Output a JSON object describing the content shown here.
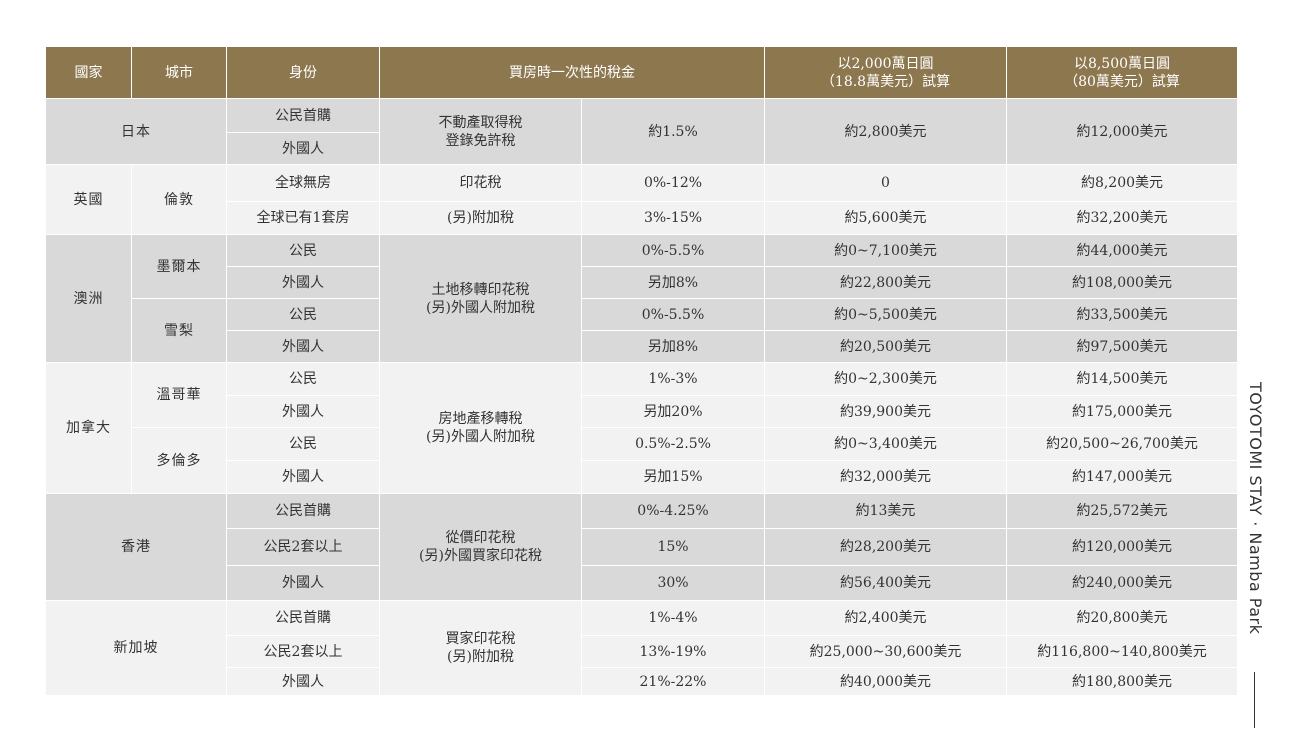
{
  "header": {
    "country": "國家",
    "city": "城市",
    "identity": "身份",
    "tax": "買房時一次性的稅金",
    "calc1_line1": "以2,000萬日圓",
    "calc1_line2": "（18.8萬美元）試算",
    "calc2_line1": "以8,500萬日圓",
    "calc2_line2": "（80萬美元）試算"
  },
  "japan": {
    "name": "日本",
    "id1": "公民首購",
    "id2": "外國人",
    "tax_line1": "不動產取得稅",
    "tax_line2": "登錄免許稅",
    "rate": "約1.5%",
    "c1": "約2,800美元",
    "c2": "約12,000美元"
  },
  "uk": {
    "name": "英國",
    "city": "倫敦",
    "rows": [
      {
        "id": "全球無房",
        "tax": "印花稅",
        "rate": "0%-12%",
        "c1": "0",
        "c2": "約8,200美元"
      },
      {
        "id": "全球已有1套房",
        "tax": "(另)附加稅",
        "rate": "3%-15%",
        "c1": "約5,600美元",
        "c2": "約32,200美元"
      }
    ]
  },
  "australia": {
    "name": "澳洲",
    "city1": "墨爾本",
    "city2": "雪梨",
    "tax_line1": "土地移轉印花稅",
    "tax_line2": "(另)外國人附加稅",
    "rows": [
      {
        "id": "公民",
        "rate": "0%-5.5%",
        "c1": "約0~7,100美元",
        "c2": "約44,000美元"
      },
      {
        "id": "外國人",
        "rate": "另加8%",
        "c1": "約22,800美元",
        "c2": "約108,000美元"
      },
      {
        "id": "公民",
        "rate": "0%-5.5%",
        "c1": "約0~5,500美元",
        "c2": "約33,500美元"
      },
      {
        "id": "外國人",
        "rate": "另加8%",
        "c1": "約20,500美元",
        "c2": "約97,500美元"
      }
    ]
  },
  "canada": {
    "name": "加拿大",
    "city1": "溫哥華",
    "city2": "多倫多",
    "tax_line1": "房地產移轉稅",
    "tax_line2": "(另)外國人附加稅",
    "rows": [
      {
        "id": "公民",
        "rate": "1%-3%",
        "c1": "約0~2,300美元",
        "c2": "約14,500美元"
      },
      {
        "id": "外國人",
        "rate": "另加20%",
        "c1": "約39,900美元",
        "c2": "約175,000美元"
      },
      {
        "id": "公民",
        "rate": "0.5%-2.5%",
        "c1": "約0~3,400美元",
        "c2": "約20,500~26,700美元"
      },
      {
        "id": "外國人",
        "rate": "另加15%",
        "c1": "約32,000美元",
        "c2": "約147,000美元"
      }
    ]
  },
  "hongkong": {
    "name": "香港",
    "tax_line1": "從價印花稅",
    "tax_line2": "(另)外國買家印花稅",
    "rows": [
      {
        "id": "公民首購",
        "rate": "0%-4.25%",
        "c1": "約13美元",
        "c2": "約25,572美元"
      },
      {
        "id": "公民2套以上",
        "rate": "15%",
        "c1": "約28,200美元",
        "c2": "約120,000美元"
      },
      {
        "id": "外國人",
        "rate": "30%",
        "c1": "約56,400美元",
        "c2": "約240,000美元"
      }
    ]
  },
  "singapore": {
    "name": "新加坡",
    "tax_line1": "買家印花稅",
    "tax_line2": "(另)附加稅",
    "rows": [
      {
        "id": "公民首購",
        "rate": "1%-4%",
        "c1": "約2,400美元",
        "c2": "約20,800美元"
      },
      {
        "id": "公民2套以上",
        "rate": "13%-19%",
        "c1": "約25,000~30,600美元",
        "c2": "約116,800~140,800美元"
      },
      {
        "id": "外國人",
        "rate": "21%-22%",
        "c1": "約40,000美元",
        "c2": "約180,800美元"
      }
    ]
  },
  "brand": "TOYOTOMI STAY · Namba Park",
  "colors": {
    "header_bg": "#8c774f",
    "gray_row": "#d9d9d9",
    "white_row": "#f2f2f2"
  }
}
